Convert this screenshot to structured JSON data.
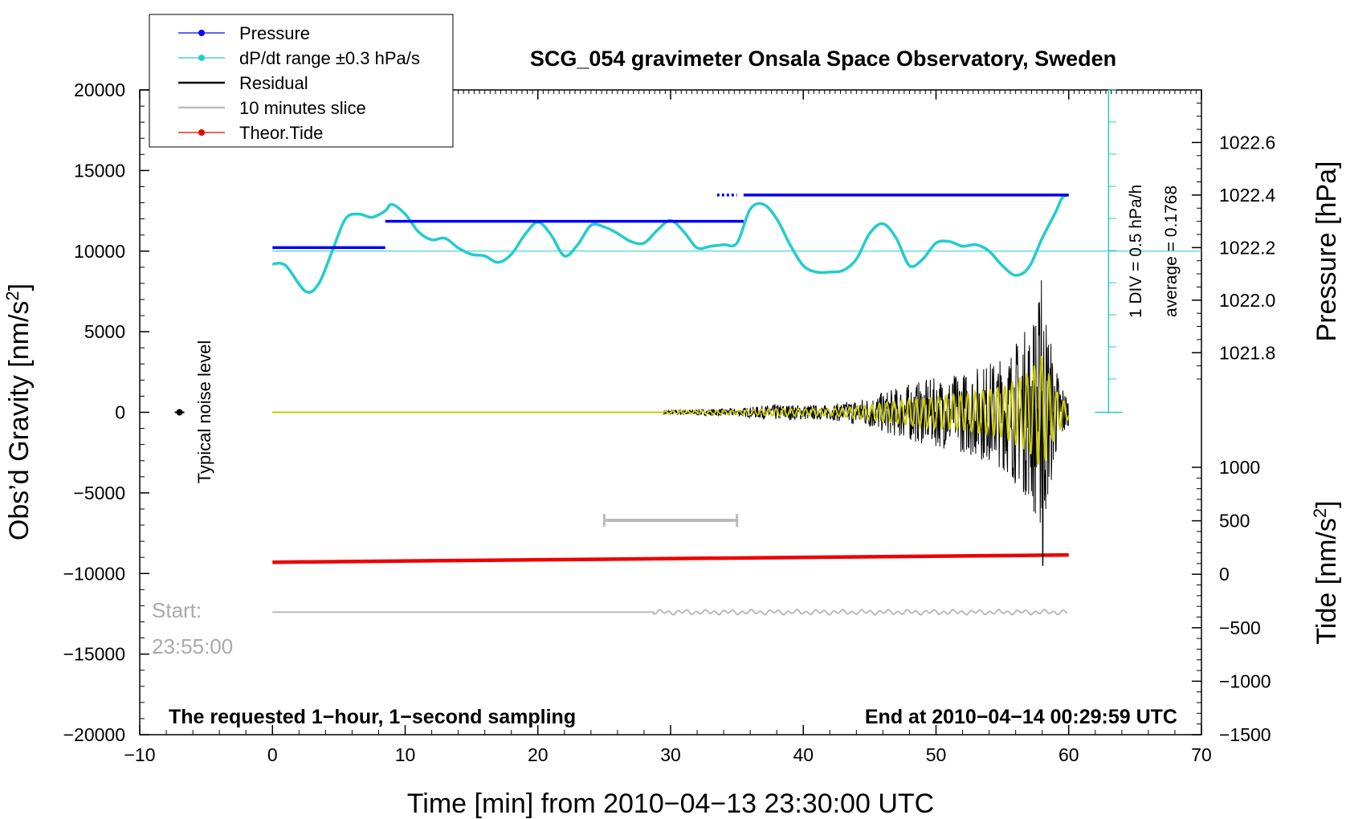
{
  "chart_data": {
    "type": "line",
    "title": "SCG_054 gravimeter Onsala Space Observatory, Sweden",
    "xlabel": "Time [min] from 2010−04−13 23:30:00 UTC",
    "ylabel_left": "Obs’d Gravity [nm/s",
    "ylabel_left_sup": "2",
    "ylabel_left_close": "]",
    "ylabel_right_top": "Pressure [hPa]",
    "ylabel_right_bottom": "Tide [nm/s",
    "ylabel_right_bottom_sup": "2",
    "ylabel_right_bottom_close": "]",
    "xlim": [
      -10,
      70
    ],
    "ylim": [
      -20000,
      20000
    ],
    "x_ticks": [
      {
        "v": -10,
        "label": "−10"
      },
      {
        "v": 0,
        "label": "0"
      },
      {
        "v": 10,
        "label": "10"
      },
      {
        "v": 20,
        "label": "20"
      },
      {
        "v": 30,
        "label": "30"
      },
      {
        "v": 40,
        "label": "40"
      },
      {
        "v": 50,
        "label": "50"
      },
      {
        "v": 60,
        "label": "60"
      },
      {
        "v": 70,
        "label": "70"
      }
    ],
    "y_ticks_left": [
      {
        "v": 20000,
        "label": "20000"
      },
      {
        "v": 15000,
        "label": "15000"
      },
      {
        "v": 10000,
        "label": "10000"
      },
      {
        "v": 5000,
        "label": "5000"
      },
      {
        "v": 0,
        "label": "0"
      },
      {
        "v": -5000,
        "label": "−5000"
      },
      {
        "v": -10000,
        "label": "−10000"
      },
      {
        "v": -15000,
        "label": "−15000"
      },
      {
        "v": -20000,
        "label": "−20000"
      }
    ],
    "pressure_axis": {
      "range": [
        1021.7,
        1022.8
      ],
      "ticks": [
        {
          "v": 1022.6,
          "label": "1022.6"
        },
        {
          "v": 1022.4,
          "label": "1022.4"
        },
        {
          "v": 1022.2,
          "label": "1022.2"
        },
        {
          "v": 1022.0,
          "label": "1022.0"
        },
        {
          "v": 1021.8,
          "label": "1021.8"
        }
      ]
    },
    "tide_axis": {
      "range": [
        -1500,
        1000
      ],
      "ticks": [
        {
          "v": 1000,
          "label": "1000"
        },
        {
          "v": 500,
          "label": "500"
        },
        {
          "v": 0,
          "label": "0"
        },
        {
          "v": -500,
          "label": "−500"
        },
        {
          "v": -1000,
          "label": "−1000"
        },
        {
          "v": -1500,
          "label": "−1500"
        }
      ]
    },
    "legend": {
      "placement": "top-left",
      "entries": [
        {
          "label": "Pressure",
          "color": "#0000ee",
          "marker": true
        },
        {
          "label": "dP/dt range ±0.3 hPa/s",
          "color": "#22cccc",
          "marker": true
        },
        {
          "label": "Residual",
          "color": "#000000",
          "marker": false
        },
        {
          "label": "10 minutes slice",
          "color": "#bbbbbb",
          "marker": false
        },
        {
          "label": "Theor.Tide",
          "color": "#ee0000",
          "marker": true
        }
      ]
    },
    "series": [
      {
        "name": "Pressure",
        "color": "#0000ee",
        "units": "hPa",
        "segments": [
          {
            "x": [
              0,
              8.5
            ],
            "value": 1022.2
          },
          {
            "x": [
              8.5,
              35.5
            ],
            "value": 1022.3
          },
          {
            "x": [
              33.5,
              35.0
            ],
            "value": 1022.4
          },
          {
            "x": [
              35.5,
              60.0
            ],
            "value": 1022.4
          }
        ]
      },
      {
        "name": "dP/dt range ±0.3 hPa/s",
        "color": "#22cccc",
        "units": "nm/s2 scale",
        "reference_level": 10000,
        "x": [
          0,
          1,
          2.5,
          3.5,
          4.5,
          5.5,
          6.5,
          7.5,
          8.5,
          9.0,
          10.0,
          11.0,
          12.0,
          13.0,
          14.0,
          15.0,
          16.0,
          17.0,
          18.0,
          19.0,
          20.0,
          21.0,
          22.0,
          23.0,
          24.0,
          25.0,
          26.0,
          27.0,
          28.0,
          29.0,
          30.0,
          31.0,
          32.0,
          33.0,
          34.0,
          35.0,
          36.0,
          37.0,
          38.0,
          39.0,
          40.0,
          41.0,
          42.0,
          43.0,
          44.0,
          45.0,
          46.0,
          47.0,
          48.0,
          49.0,
          50.0,
          51.0,
          52.0,
          53.0,
          54.0,
          55.0,
          56.0,
          57.0,
          58.0,
          59.0,
          59.5,
          60.0
        ],
        "values": [
          9200,
          9100,
          7500,
          8000,
          10000,
          12000,
          12300,
          12100,
          12500,
          12900,
          12300,
          11200,
          10700,
          10800,
          10200,
          9800,
          9700,
          9300,
          9800,
          11000,
          11800,
          11000,
          9700,
          10400,
          11600,
          11500,
          11100,
          10600,
          10500,
          11300,
          11900,
          11200,
          10200,
          10300,
          10400,
          10500,
          12600,
          12900,
          12000,
          10400,
          9100,
          8700,
          8700,
          8800,
          9500,
          11100,
          11700,
          10800,
          9100,
          9500,
          10500,
          10600,
          10300,
          10400,
          10000,
          9100,
          8500,
          9000,
          10800,
          12400,
          13300,
          13500
        ]
      },
      {
        "name": "Residual",
        "color": "#000000",
        "units": "nm/s2",
        "quiet_until_min": 29.5,
        "envelope": [
          {
            "x": 29.5,
            "amp": 150
          },
          {
            "x": 35,
            "amp": 250
          },
          {
            "x": 38,
            "amp": 500
          },
          {
            "x": 42,
            "amp": 450
          },
          {
            "x": 45,
            "amp": 1000
          },
          {
            "x": 48,
            "amp": 1800
          },
          {
            "x": 52,
            "amp": 2500
          },
          {
            "x": 55,
            "amp": 3500
          },
          {
            "x": 57,
            "amp": 5500
          },
          {
            "x": 58,
            "amp": 8000
          },
          {
            "x": 59,
            "amp": 3000
          },
          {
            "x": 60,
            "amp": 800
          }
        ],
        "spike_max": 8200,
        "spike_min": -9500
      },
      {
        "name": "filtered residual",
        "color": "#cccc00",
        "units": "nm/s2"
      },
      {
        "name": "Theor.Tide",
        "color": "#ee0000",
        "units": "nm/s2",
        "x": [
          0,
          60
        ],
        "values": [
          -9300,
          -8850
        ]
      },
      {
        "name": "10 minutes slice",
        "color": "#bbbbbb",
        "units": "nm/s2",
        "level": -12400,
        "wiggle_from_min": 28.7,
        "x_end": 60
      }
    ],
    "noise_marker": {
      "x": -7,
      "y": 0,
      "label": "Typical noise level"
    },
    "slice_bracket": {
      "x": [
        25,
        35
      ],
      "y": -6700
    },
    "pressure_scale_bar": {
      "label_line1": "1 DIV = 0.5 hPa/h",
      "label_line2": "average = 0.1768",
      "x": 63
    },
    "annotations": {
      "start_label": "Start:",
      "start_time": "23:55:00",
      "bottom_left": "The requested 1−hour, 1−second sampling",
      "bottom_right": "End at 2010−04−14 00:29:59 UTC"
    }
  }
}
